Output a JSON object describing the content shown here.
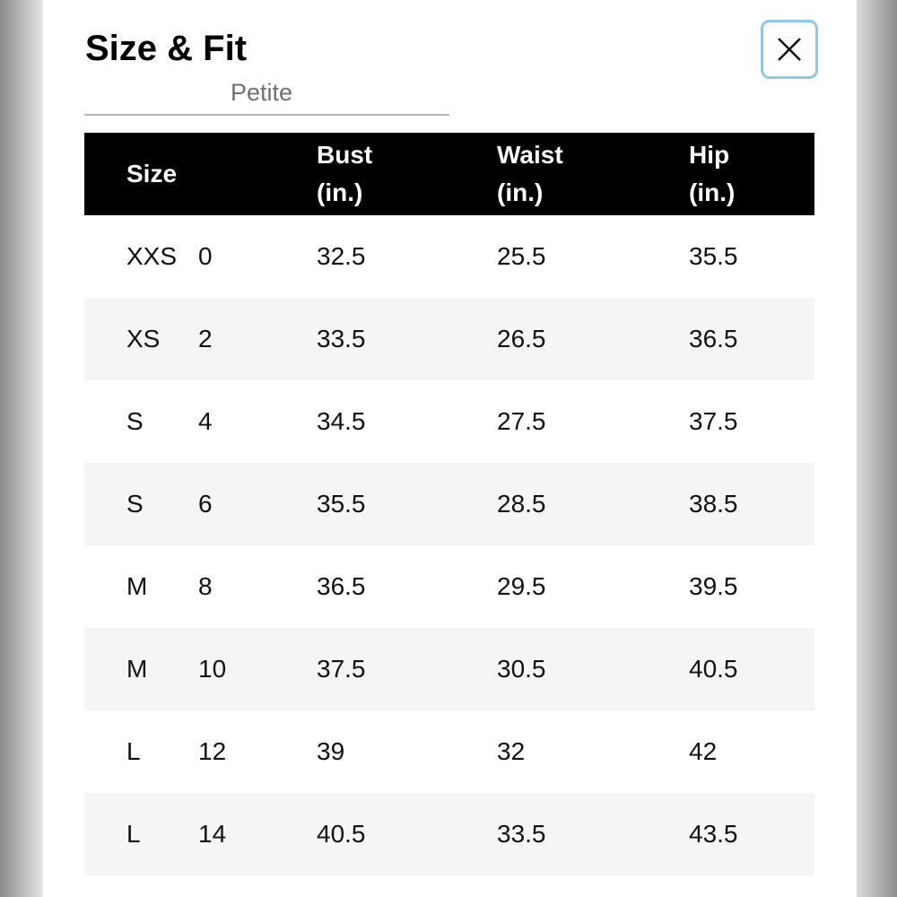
{
  "header": {
    "title": "Size & Fit",
    "tab": "Petite"
  },
  "table": {
    "columns": [
      [
        "Size"
      ],
      [
        "Bust",
        "(in.)"
      ],
      [
        "Waist",
        "(in.)"
      ],
      [
        "Hip",
        "(in.)"
      ]
    ],
    "rows": [
      [
        "XXS",
        "0",
        "32.5",
        "25.5",
        "35.5"
      ],
      [
        "XS",
        "2",
        "33.5",
        "26.5",
        "36.5"
      ],
      [
        "S",
        "4",
        "34.5",
        "27.5",
        "37.5"
      ],
      [
        "S",
        "6",
        "35.5",
        "28.5",
        "38.5"
      ],
      [
        "M",
        "8",
        "36.5",
        "29.5",
        "39.5"
      ],
      [
        "M",
        "10",
        "37.5",
        "30.5",
        "40.5"
      ],
      [
        "L",
        "12",
        "39",
        "32",
        "42"
      ],
      [
        "L",
        "14",
        "40.5",
        "33.5",
        "43.5"
      ]
    ]
  }
}
